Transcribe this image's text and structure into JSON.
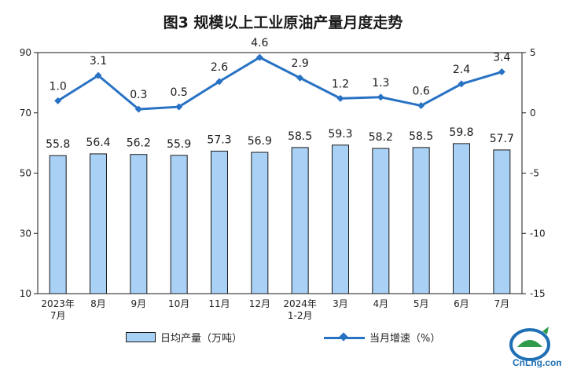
{
  "title": "图3  规模以上工业原油产量月度走势",
  "chart_data": {
    "type": "bar",
    "categories": [
      "2023年\n7月",
      "8月",
      "9月",
      "10月",
      "11月",
      "12月",
      "2024年\n1-2月",
      "3月",
      "4月",
      "5月",
      "6月",
      "7月"
    ],
    "series": [
      {
        "name": "日均产量（万吨）",
        "type": "bar",
        "axis": "left",
        "values": [
          55.8,
          56.4,
          56.2,
          55.9,
          57.3,
          56.9,
          58.5,
          59.3,
          58.2,
          58.5,
          59.8,
          57.7
        ]
      },
      {
        "name": "当月增速（%）",
        "type": "line",
        "axis": "right",
        "values": [
          1.0,
          3.1,
          0.3,
          0.5,
          2.6,
          4.6,
          2.9,
          1.2,
          1.3,
          0.6,
          2.4,
          3.4
        ]
      }
    ],
    "y_left": {
      "ticks": [
        10,
        30,
        50,
        70,
        90
      ],
      "range": [
        10,
        90
      ]
    },
    "y_right": {
      "ticks": [
        5,
        0,
        -5,
        -10,
        -15
      ],
      "range": [
        -15,
        5
      ]
    },
    "colors": {
      "bar": "#a9d1f5",
      "bar_stroke": "#1a1a1a",
      "line": "#2872c4"
    },
    "grid": false,
    "legend": "bottom"
  },
  "watermark": {
    "text": "CnLng.com"
  }
}
